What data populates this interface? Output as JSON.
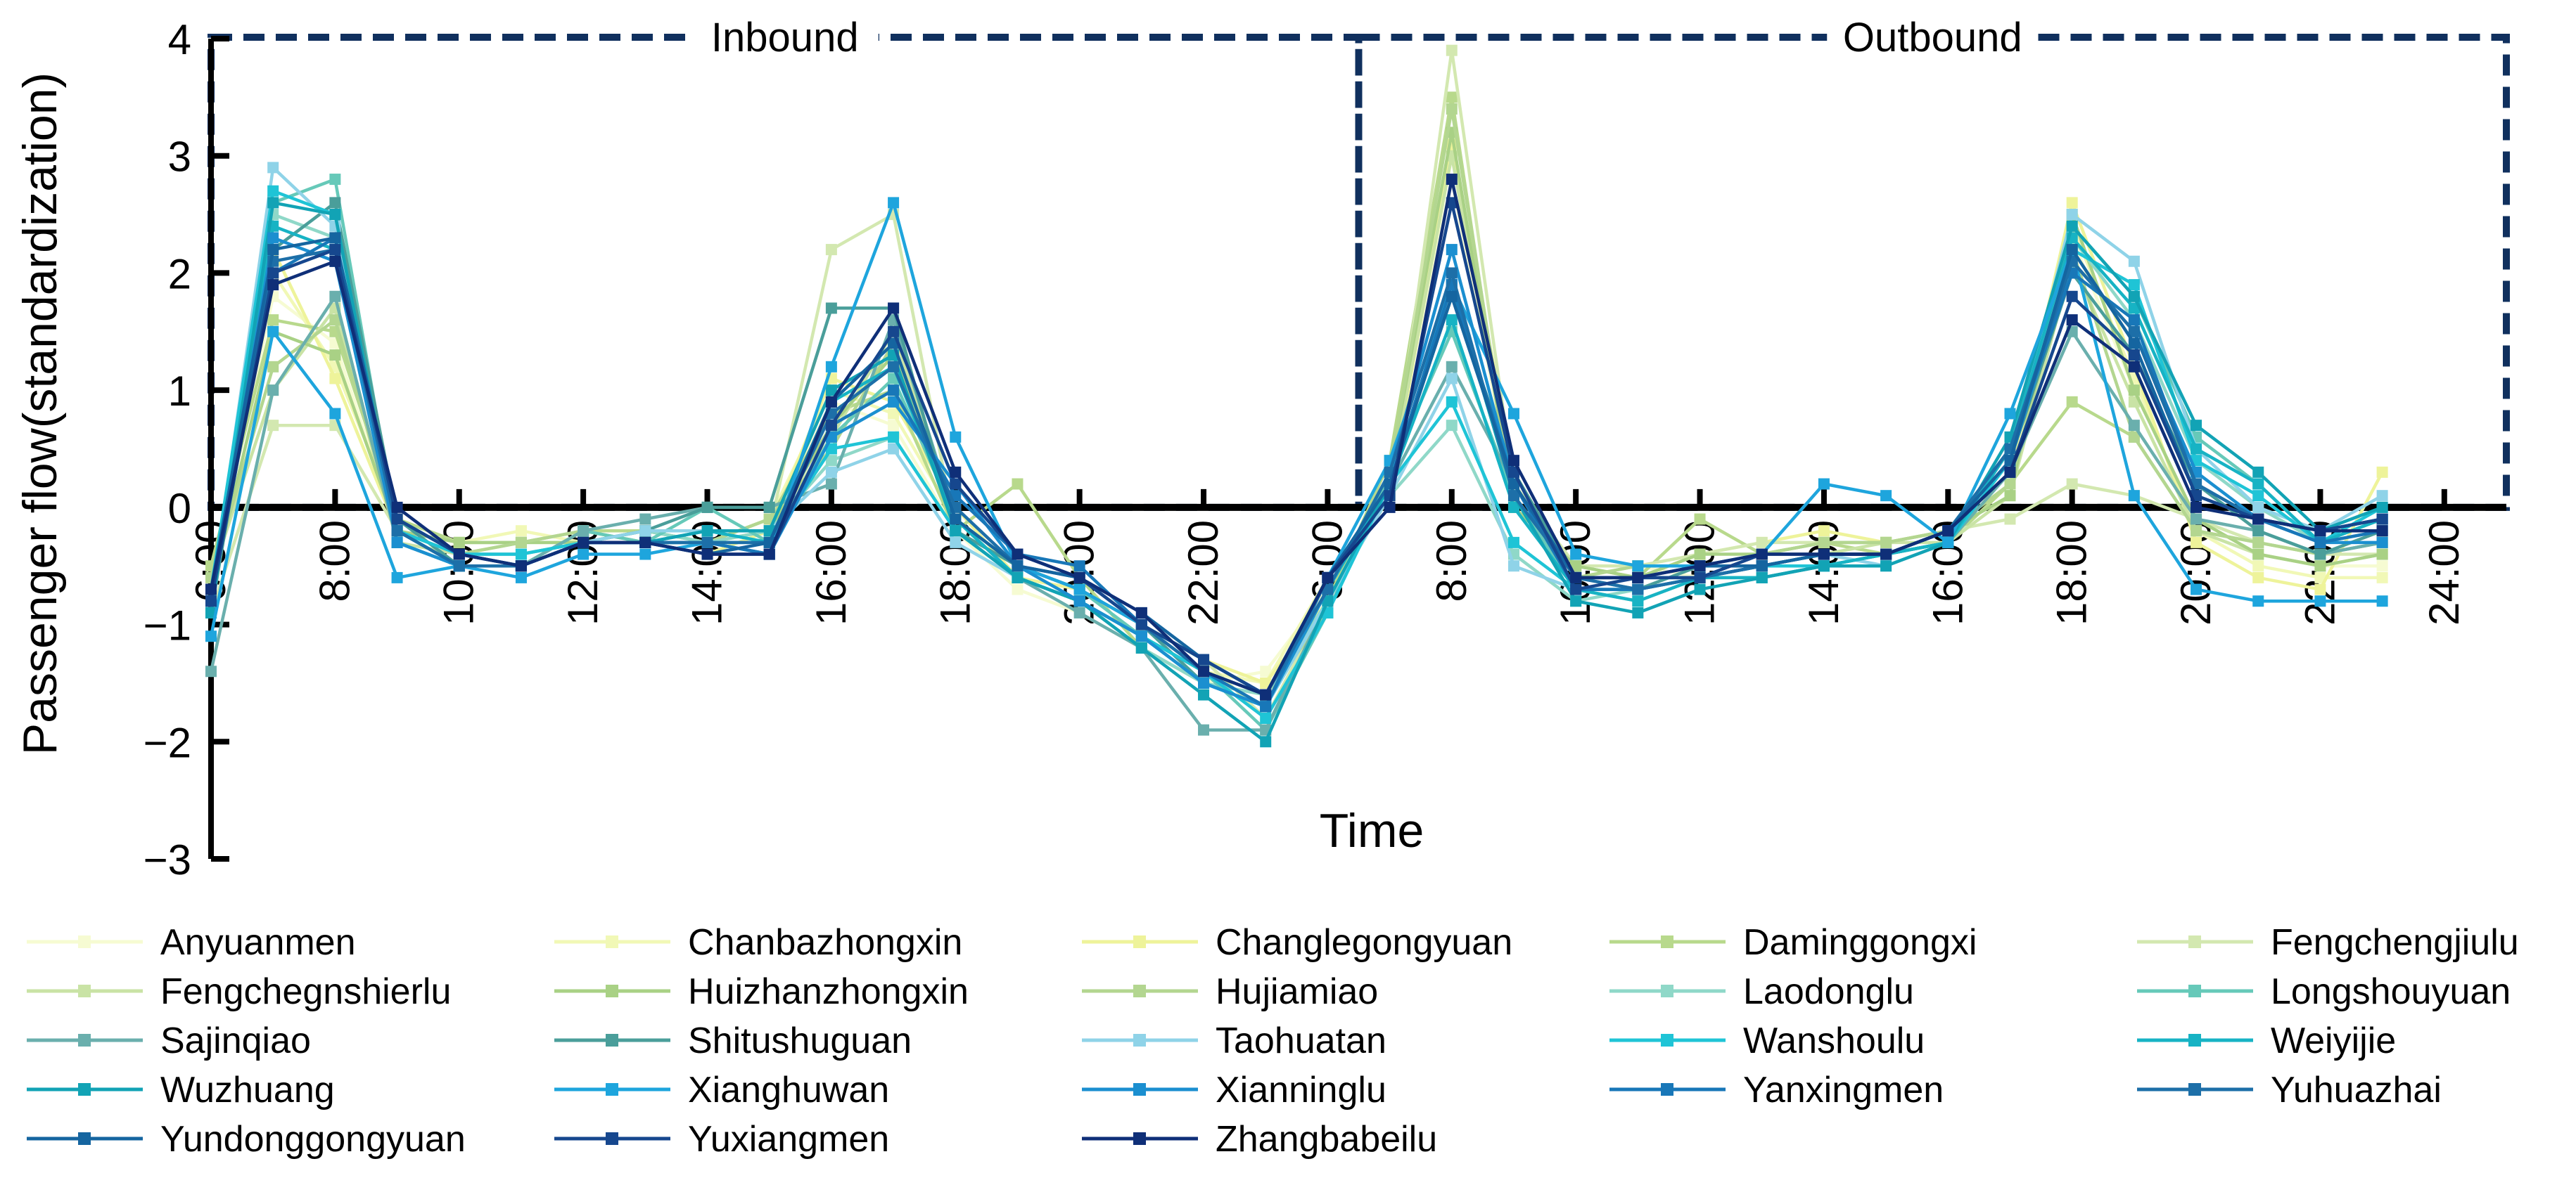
{
  "chart_data": {
    "type": "line",
    "title": "",
    "xlabel": "Time",
    "ylabel": "Passenger flow(standardization)",
    "ylim": [
      -3,
      4
    ],
    "yticks": [
      -3,
      -2,
      -1,
      0,
      1,
      2,
      3,
      4
    ],
    "ytick_labels": [
      "−3",
      "−2",
      "−1",
      "0",
      "1",
      "2",
      "3",
      "4"
    ],
    "xlim": [
      0,
      37
    ],
    "x": [
      0,
      1,
      2,
      3,
      4,
      5,
      6,
      7,
      8,
      9,
      10,
      11,
      12,
      13,
      14,
      15,
      16,
      17,
      18,
      19,
      20,
      21,
      22,
      23,
      24,
      25,
      26,
      27,
      28,
      29,
      30,
      31,
      32,
      33,
      34,
      35
    ],
    "xtick_positions": [
      0,
      2,
      4,
      6,
      8,
      10,
      12,
      14,
      16,
      18,
      20,
      22,
      24,
      26,
      28,
      30,
      32,
      34,
      36
    ],
    "xtick_labels": [
      "6:00",
      "8:00",
      "10:00",
      "12:00",
      "14:00",
      "16:00",
      "18:00",
      "20:00",
      "22:00",
      "6:00",
      "8:00",
      "10:00",
      "12:00",
      "14:00",
      "16:00",
      "18:00",
      "20:00",
      "22:00",
      "24:00"
    ],
    "panels": [
      {
        "label": "Inbound",
        "x_range": [
          0,
          18.5
        ]
      },
      {
        "label": "Outbound",
        "x_range": [
          18.5,
          37
        ]
      }
    ],
    "series": [
      {
        "name": "Anyuanmen",
        "color": "#f6fbd2",
        "values": [
          -0.7,
          1.8,
          1.4,
          -0.2,
          -0.4,
          -0.3,
          -0.2,
          -0.3,
          -0.4,
          -0.2,
          0.9,
          0.7,
          -0.2,
          -0.7,
          -0.9,
          -1.2,
          -1.5,
          -1.4,
          -0.7,
          0.3,
          2.8,
          0.1,
          -0.6,
          -0.5,
          -0.6,
          -0.5,
          -0.4,
          -0.4,
          -0.3,
          0.2,
          2.3,
          1.0,
          -0.1,
          -0.4,
          -0.5,
          -0.5
        ]
      },
      {
        "name": "Chanbazhongxin",
        "color": "#f1f8b6",
        "values": [
          -0.6,
          2.0,
          1.2,
          -0.1,
          -0.3,
          -0.2,
          -0.3,
          -0.2,
          -0.3,
          -0.1,
          1.0,
          0.8,
          -0.1,
          -0.6,
          -0.8,
          -1.1,
          -1.4,
          -1.5,
          -0.6,
          0.2,
          3.0,
          0.2,
          -0.5,
          -0.5,
          -0.5,
          -0.4,
          -0.3,
          -0.3,
          -0.2,
          0.2,
          2.4,
          1.1,
          -0.2,
          -0.5,
          -0.6,
          -0.6
        ]
      },
      {
        "name": "Changlegongyuan",
        "color": "#eef39a",
        "values": [
          -0.8,
          2.2,
          1.1,
          -0.2,
          -0.4,
          -0.4,
          -0.3,
          -0.3,
          -0.4,
          -0.2,
          1.1,
          0.9,
          0.0,
          -0.6,
          -0.7,
          -1.0,
          -1.3,
          -1.5,
          -0.8,
          0.1,
          3.1,
          0.3,
          -0.6,
          -0.6,
          -0.4,
          -0.3,
          -0.2,
          -0.3,
          -0.2,
          0.3,
          2.6,
          1.2,
          -0.3,
          -0.6,
          -0.7,
          0.3
        ]
      },
      {
        "name": "Daminggongxi",
        "color": "#b8d98c",
        "values": [
          -0.5,
          1.6,
          1.5,
          -0.1,
          -0.3,
          -0.3,
          -0.2,
          -0.2,
          -0.3,
          -0.1,
          0.8,
          1.0,
          -0.2,
          0.2,
          -0.6,
          -1.2,
          -1.5,
          -1.6,
          -0.8,
          0.4,
          3.5,
          0.0,
          -0.5,
          -0.6,
          -0.1,
          -0.4,
          -0.3,
          -0.4,
          -0.3,
          0.2,
          0.9,
          0.6,
          -0.2,
          -0.3,
          -0.4,
          -0.3
        ]
      },
      {
        "name": "Fengchengjiulu",
        "color": "#d3e8b0",
        "values": [
          -0.9,
          0.7,
          0.7,
          -0.2,
          -0.3,
          -0.3,
          -0.2,
          -0.3,
          -0.3,
          -0.2,
          2.2,
          2.5,
          -0.2,
          -0.5,
          -0.7,
          -1.0,
          -1.3,
          -1.8,
          -0.8,
          0.1,
          3.9,
          0.2,
          -0.5,
          -0.5,
          -0.4,
          -0.3,
          -0.3,
          -0.3,
          -0.2,
          -0.1,
          0.2,
          0.1,
          -0.1,
          -0.3,
          -0.4,
          -0.4
        ]
      },
      {
        "name": "Fengchegnshierlu",
        "color": "#c9e3a5",
        "values": [
          -0.6,
          1.0,
          1.7,
          -0.3,
          -0.4,
          -0.3,
          -0.3,
          -0.2,
          -0.3,
          -0.2,
          0.6,
          1.5,
          -0.1,
          -0.6,
          -0.8,
          -1.1,
          -1.4,
          -1.7,
          -0.7,
          0.2,
          3.0,
          0.1,
          -0.6,
          -0.5,
          -0.5,
          -0.4,
          -0.4,
          -0.3,
          -0.3,
          0.1,
          2.1,
          0.9,
          -0.2,
          -0.4,
          -0.5,
          -0.4
        ]
      },
      {
        "name": "Huizhanzhongxin",
        "color": "#a9d185",
        "values": [
          -0.7,
          1.5,
          1.3,
          -0.2,
          -0.3,
          -0.3,
          -0.3,
          -0.2,
          -0.3,
          -0.2,
          0.7,
          1.3,
          -0.1,
          -0.5,
          -0.7,
          -1.0,
          -1.3,
          -1.6,
          -0.7,
          0.3,
          3.2,
          0.0,
          -0.5,
          -0.6,
          -0.4,
          -0.4,
          -0.3,
          -0.3,
          -0.2,
          0.1,
          2.5,
          1.0,
          -0.1,
          -0.4,
          -0.5,
          -0.4
        ]
      },
      {
        "name": "Hujiamiao",
        "color": "#b3d690",
        "values": [
          -0.6,
          1.2,
          1.6,
          -0.2,
          -0.4,
          -0.3,
          -0.2,
          -0.3,
          -0.3,
          -0.1,
          0.5,
          1.4,
          -0.2,
          -0.6,
          -0.8,
          -1.1,
          -1.4,
          -1.6,
          -0.9,
          0.3,
          3.4,
          0.1,
          -0.6,
          -0.5,
          -0.5,
          -0.4,
          -0.3,
          -0.3,
          -0.2,
          0.2,
          2.2,
          0.6,
          -0.2,
          -0.3,
          -0.4,
          -0.3
        ]
      },
      {
        "name": "Laodonglu",
        "color": "#8fd8c8",
        "values": [
          -0.8,
          2.5,
          2.3,
          -0.1,
          -0.4,
          -0.4,
          -0.3,
          -0.2,
          -0.3,
          -0.2,
          0.4,
          0.6,
          -0.2,
          -0.6,
          -0.8,
          -1.2,
          -1.5,
          -1.6,
          -0.8,
          0.1,
          0.7,
          -0.4,
          -0.8,
          -0.7,
          -0.6,
          -0.5,
          -0.4,
          -0.4,
          -0.3,
          0.4,
          2.3,
          1.6,
          0.4,
          0.0,
          -0.3,
          -0.2
        ]
      },
      {
        "name": "Longshouyuan",
        "color": "#66c9b9",
        "values": [
          -0.9,
          2.6,
          2.8,
          -0.2,
          -0.5,
          -0.5,
          -0.2,
          -0.3,
          0.0,
          -0.3,
          0.6,
          1.1,
          -0.1,
          -0.5,
          -0.7,
          -1.1,
          -1.4,
          -1.9,
          -0.9,
          0.3,
          1.5,
          0.1,
          -0.7,
          -0.8,
          -0.6,
          -0.6,
          -0.5,
          -0.4,
          -0.3,
          0.5,
          2.4,
          1.8,
          0.6,
          0.2,
          -0.3,
          -0.1
        ]
      },
      {
        "name": "Sajinqiao",
        "color": "#6aafad",
        "values": [
          -1.4,
          1.0,
          1.8,
          -0.3,
          -0.5,
          -0.5,
          -0.2,
          -0.1,
          0.0,
          0.0,
          0.2,
          1.6,
          -0.1,
          -0.6,
          -0.9,
          -1.2,
          -1.9,
          -1.9,
          -0.8,
          0.2,
          1.2,
          0.2,
          -0.6,
          -0.6,
          -0.6,
          -0.5,
          -0.5,
          -0.4,
          -0.3,
          0.3,
          1.5,
          0.7,
          -0.1,
          -0.2,
          -0.4,
          -0.3
        ]
      },
      {
        "name": "Shitushuguan",
        "color": "#4a9e9a",
        "values": [
          -0.9,
          2.2,
          2.6,
          -0.1,
          -0.5,
          -0.5,
          -0.3,
          -0.2,
          0.0,
          0.0,
          1.7,
          1.7,
          -0.2,
          -0.5,
          -0.7,
          -1.0,
          -1.5,
          -1.7,
          -0.7,
          0.2,
          1.8,
          0.3,
          -0.6,
          -0.7,
          -0.5,
          -0.5,
          -0.4,
          -0.4,
          -0.3,
          0.4,
          2.0,
          1.3,
          0.2,
          -0.2,
          -0.4,
          -0.2
        ]
      },
      {
        "name": "Taohuatan",
        "color": "#8fd3e8",
        "values": [
          -0.8,
          2.9,
          2.4,
          -0.2,
          -0.4,
          -0.4,
          -0.3,
          -0.2,
          -0.2,
          -0.2,
          0.3,
          0.5,
          -0.3,
          -0.6,
          -0.8,
          -1.1,
          -1.5,
          -1.7,
          -0.8,
          0.1,
          1.1,
          -0.5,
          -0.7,
          -0.7,
          -0.6,
          -0.5,
          -0.4,
          -0.5,
          -0.3,
          0.4,
          2.5,
          2.1,
          0.5,
          0.0,
          -0.2,
          0.1
        ]
      },
      {
        "name": "Wanshoulu",
        "color": "#1fc4d6",
        "values": [
          -0.7,
          2.7,
          2.5,
          -0.2,
          -0.4,
          -0.4,
          -0.3,
          -0.3,
          -0.3,
          -0.3,
          0.5,
          0.6,
          -0.2,
          -0.6,
          -0.8,
          -1.1,
          -1.4,
          -1.8,
          -0.9,
          0.2,
          0.9,
          -0.3,
          -0.7,
          -0.7,
          -0.6,
          -0.5,
          -0.5,
          -0.4,
          -0.3,
          0.4,
          2.2,
          1.9,
          0.4,
          0.1,
          -0.3,
          0.0
        ]
      },
      {
        "name": "Weiyijie",
        "color": "#17b3c4",
        "values": [
          -0.8,
          2.4,
          2.2,
          -0.3,
          -0.5,
          -0.5,
          -0.3,
          -0.3,
          -0.2,
          -0.3,
          0.9,
          1.2,
          -0.1,
          -0.6,
          -0.8,
          -1.1,
          -1.5,
          -1.7,
          -0.7,
          0.2,
          1.6,
          0.0,
          -0.7,
          -0.8,
          -0.6,
          -0.6,
          -0.5,
          -0.4,
          -0.3,
          0.5,
          2.3,
          1.7,
          0.5,
          0.2,
          -0.3,
          -0.1
        ]
      },
      {
        "name": "Wuzhuang",
        "color": "#12a3b5",
        "values": [
          -0.9,
          2.6,
          2.5,
          -0.2,
          -0.5,
          -0.5,
          -0.3,
          -0.3,
          -0.2,
          -0.2,
          1.0,
          1.3,
          -0.2,
          -0.6,
          -0.8,
          -1.2,
          -1.6,
          -2.0,
          -0.8,
          0.2,
          1.9,
          0.1,
          -0.8,
          -0.9,
          -0.7,
          -0.6,
          -0.5,
          -0.5,
          -0.3,
          0.6,
          2.4,
          1.8,
          0.7,
          0.3,
          -0.2,
          0.0
        ]
      },
      {
        "name": "Xianghuwan",
        "color": "#1ea5dd",
        "values": [
          -1.1,
          1.5,
          0.8,
          -0.6,
          -0.5,
          -0.6,
          -0.4,
          -0.4,
          -0.3,
          -0.4,
          1.2,
          2.6,
          0.6,
          -0.5,
          -0.7,
          -1.0,
          -1.3,
          -1.6,
          -0.6,
          0.4,
          1.9,
          0.8,
          -0.4,
          -0.5,
          -0.5,
          -0.4,
          0.2,
          0.1,
          -0.3,
          0.8,
          2.2,
          0.1,
          -0.7,
          -0.8,
          -0.8,
          -0.8
        ]
      },
      {
        "name": "Xianninglu",
        "color": "#1b8fd0",
        "values": [
          -0.8,
          2.3,
          2.1,
          -0.3,
          -0.5,
          -0.5,
          -0.3,
          -0.3,
          -0.3,
          -0.4,
          0.6,
          0.9,
          0.2,
          -0.5,
          -0.8,
          -1.1,
          -1.5,
          -1.7,
          -0.7,
          0.3,
          2.2,
          0.2,
          -0.6,
          -0.6,
          -0.6,
          -0.5,
          -0.4,
          -0.4,
          -0.2,
          0.4,
          2.1,
          1.5,
          0.3,
          -0.1,
          -0.3,
          -0.3
        ]
      },
      {
        "name": "Yanxingmen",
        "color": "#1877b8",
        "values": [
          -0.8,
          2.0,
          2.3,
          -0.2,
          -0.5,
          -0.5,
          -0.3,
          -0.3,
          -0.3,
          -0.4,
          0.7,
          1.0,
          0.1,
          -0.4,
          -0.5,
          -1.0,
          -1.4,
          -1.7,
          -0.6,
          0.2,
          1.9,
          0.2,
          -0.7,
          -0.7,
          -0.6,
          -0.5,
          -0.4,
          -0.4,
          -0.2,
          0.5,
          2.0,
          1.6,
          0.2,
          -0.1,
          -0.3,
          -0.2
        ]
      },
      {
        "name": "Yuhuazhai",
        "color": "#1d6fa8",
        "values": [
          -0.8,
          2.1,
          2.2,
          -0.2,
          -0.5,
          -0.5,
          -0.3,
          -0.3,
          -0.3,
          -0.3,
          0.8,
          1.2,
          0.0,
          -0.5,
          -0.6,
          -1.0,
          -1.4,
          -1.6,
          -0.7,
          0.3,
          2.0,
          0.1,
          -0.6,
          -0.7,
          -0.6,
          -0.5,
          -0.4,
          -0.4,
          -0.2,
          0.5,
          2.1,
          1.5,
          0.2,
          -0.1,
          -0.2,
          -0.1
        ]
      },
      {
        "name": "Yundonggongyuan",
        "color": "#1565a0",
        "values": [
          -0.7,
          2.2,
          2.3,
          -0.1,
          -0.4,
          -0.5,
          -0.3,
          -0.3,
          -0.4,
          -0.3,
          0.9,
          1.4,
          -0.1,
          -0.5,
          -0.6,
          -0.9,
          -1.3,
          -1.6,
          -0.6,
          0.2,
          1.8,
          0.2,
          -0.6,
          -0.6,
          -0.5,
          -0.5,
          -0.4,
          -0.4,
          -0.2,
          0.4,
          2.2,
          1.4,
          0.1,
          -0.1,
          -0.2,
          -0.1
        ]
      },
      {
        "name": "Yuxiangmen",
        "color": "#16478e",
        "values": [
          -0.8,
          2.0,
          2.2,
          -0.1,
          -0.4,
          -0.5,
          -0.3,
          -0.3,
          -0.4,
          -0.4,
          0.7,
          1.5,
          0.2,
          -0.4,
          -0.6,
          -1.0,
          -1.3,
          -1.6,
          -0.6,
          0.1,
          2.6,
          0.3,
          -0.7,
          -0.6,
          -0.6,
          -0.4,
          -0.4,
          -0.4,
          -0.2,
          0.3,
          1.8,
          1.3,
          0.1,
          -0.1,
          -0.2,
          -0.1
        ]
      },
      {
        "name": "Zhangbabeilu",
        "color": "#0f2f78",
        "values": [
          -0.7,
          1.9,
          2.1,
          0.0,
          -0.4,
          -0.5,
          -0.3,
          -0.3,
          -0.4,
          -0.4,
          0.9,
          1.7,
          0.3,
          -0.4,
          -0.6,
          -0.9,
          -1.4,
          -1.6,
          -0.6,
          0.0,
          2.8,
          0.4,
          -0.6,
          -0.6,
          -0.5,
          -0.4,
          -0.4,
          -0.4,
          -0.2,
          0.3,
          1.6,
          1.2,
          0.0,
          -0.1,
          -0.2,
          -0.2
        ]
      }
    ]
  }
}
